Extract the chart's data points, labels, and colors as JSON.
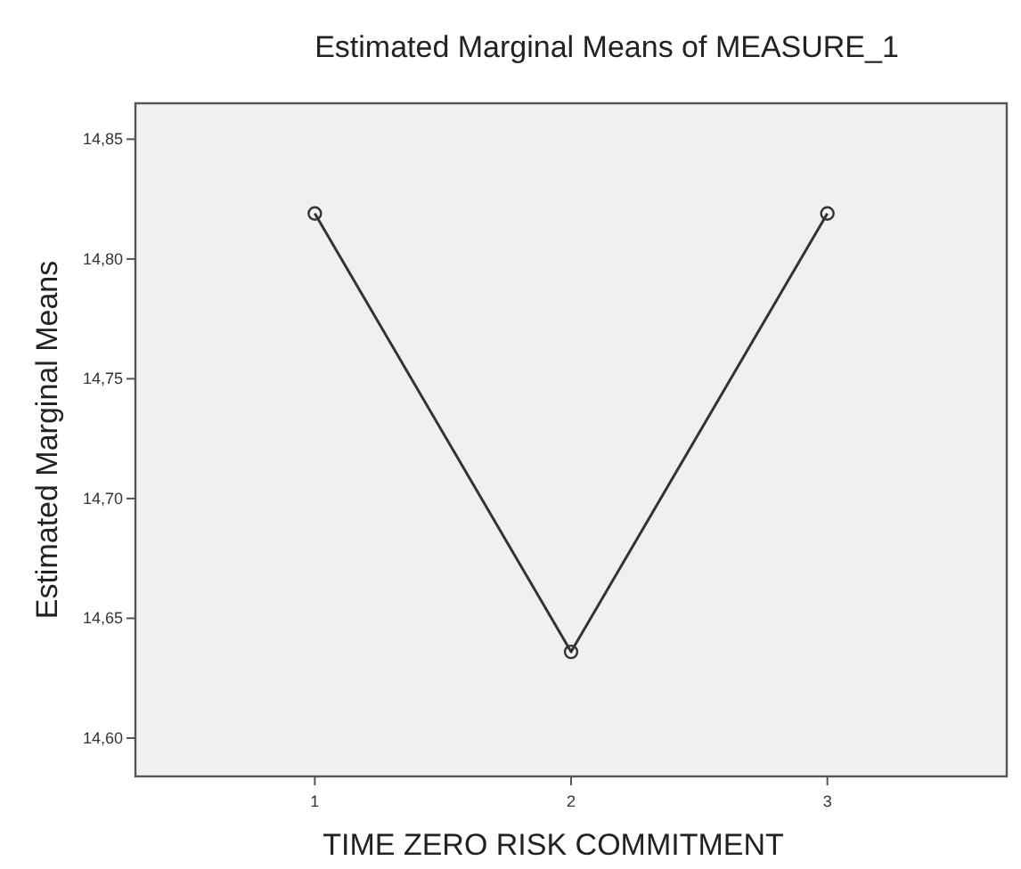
{
  "chart_data": {
    "type": "line",
    "title": "Estimated Marginal Means of MEASURE_1",
    "xlabel": "TIME ZERO RISK COMMITMENT",
    "ylabel": "Estimated Marginal Means",
    "categories": [
      "1",
      "2",
      "3"
    ],
    "series": [
      {
        "color": "#333333",
        "values": [
          14.819,
          14.636,
          14.819
        ]
      }
    ],
    "ylim": [
      14.584,
      14.865
    ],
    "yticks": [
      {
        "value": 14.6,
        "label": "14,60"
      },
      {
        "value": 14.65,
        "label": "14,65"
      },
      {
        "value": 14.7,
        "label": "14,70"
      },
      {
        "value": 14.75,
        "label": "14,75"
      },
      {
        "value": 14.8,
        "label": "14,80"
      },
      {
        "value": 14.85,
        "label": "14,85"
      }
    ],
    "marker": "circle",
    "line_style": "solid"
  }
}
